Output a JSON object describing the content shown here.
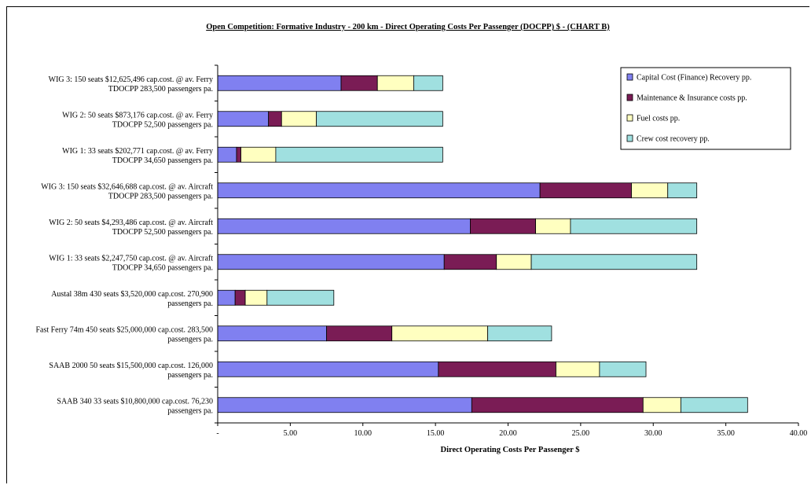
{
  "chart_data": {
    "type": "bar",
    "orientation": "horizontal",
    "stacked": true,
    "title": "Open Competition: Formative Industry - 200 km - Direct Operating Costs Per Passenger (DOCPP) $ - (CHART B)",
    "xlabel": "Direct Operating Costs Per Passenger $",
    "ylabel": "",
    "xlim": [
      0,
      40
    ],
    "x_ticks": [
      {
        "value": 0,
        "label": "-"
      },
      {
        "value": 5,
        "label": "5.00"
      },
      {
        "value": 10,
        "label": "10.00"
      },
      {
        "value": 15,
        "label": "15.00"
      },
      {
        "value": 20,
        "label": "20.00"
      },
      {
        "value": 25,
        "label": "25.00"
      },
      {
        "value": 30,
        "label": "30.00"
      },
      {
        "value": 35,
        "label": "35.00"
      },
      {
        "value": 40,
        "label": "40.00"
      }
    ],
    "grid": false,
    "legend_position": "top-right",
    "categories": [
      [
        "WIG 3: 150 seats $12,625,496 cap.cost. @ av. Ferry",
        "TDOCPP 283,500 passengers pa."
      ],
      [
        "WIG 2: 50 seats $873,176 cap.cost. @ av. Ferry",
        "TDOCPP 52,500 passengers pa."
      ],
      [
        "WIG 1: 33 seats $202,771 cap.cost. @ av. Ferry",
        "TDOCPP 34,650 passengers pa."
      ],
      [
        "WIG 3: 150 seats $32,646,688 cap.cost. @ av. Aircraft",
        "TDOCPP 283,500 passengers pa."
      ],
      [
        "WIG 2: 50 seats $4,293,486 cap.cost. @ av. Aircraft",
        "TDOCPP 52,500 passengers pa."
      ],
      [
        "WIG 1: 33 seats $2,247,750 cap.cost. @ av. Aircraft",
        "TDOCPP 34,650 passengers pa."
      ],
      [
        "Austal 38m 430 seats $3,520,000 cap.cost. 270,900",
        "passengers pa."
      ],
      [
        "Fast Ferry 74m 450 seats $25,000,000 cap.cost. 283,500",
        "passengers pa."
      ],
      [
        "SAAB 2000 50 seats $15,500,000 cap.cost. 126,000",
        "passengers pa."
      ],
      [
        "SAAB 340 33 seats $10,800,000 cap.cost. 76,230",
        "passengers pa."
      ]
    ],
    "series": [
      {
        "name": "Capital Cost (Finance) Recovery pp.",
        "color": "#8080F0",
        "values": [
          8.5,
          3.5,
          1.3,
          22.2,
          17.4,
          15.6,
          1.2,
          7.5,
          15.2,
          17.5
        ]
      },
      {
        "name": "Maintenance & Insurance costs pp.",
        "color": "#7A1C55",
        "values": [
          2.5,
          0.9,
          0.3,
          6.3,
          4.5,
          3.6,
          0.7,
          4.5,
          8.1,
          11.8
        ]
      },
      {
        "name": "Fuel costs pp.",
        "color": "#FFFFC0",
        "values": [
          2.5,
          2.4,
          2.4,
          2.5,
          2.4,
          2.4,
          1.5,
          6.6,
          3.0,
          2.6
        ]
      },
      {
        "name": "Crew cost recovery pp.",
        "color": "#A0E0E0",
        "values": [
          2.0,
          8.7,
          11.5,
          2.0,
          8.7,
          11.4,
          4.6,
          4.4,
          3.2,
          4.6
        ]
      }
    ]
  }
}
